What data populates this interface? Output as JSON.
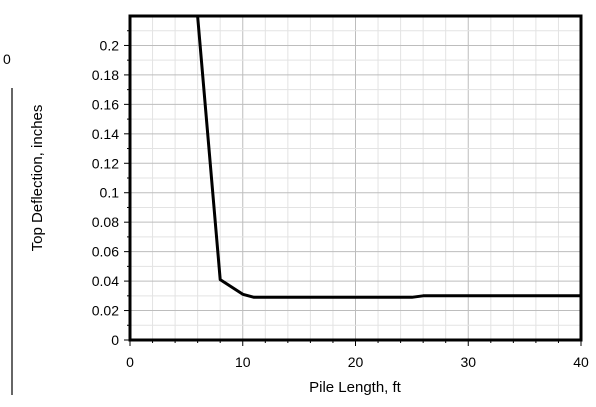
{
  "chart_data": {
    "type": "line",
    "title": "",
    "xlabel": "Pile Length, ft",
    "ylabel": "Top Deflection, inches",
    "xlim": [
      0,
      40
    ],
    "ylim": [
      0,
      0.22
    ],
    "x_ticks": [
      "0",
      "10",
      "20",
      "30",
      "40"
    ],
    "y_ticks": [
      "0",
      "0.02",
      "0.04",
      "0.06",
      "0.08",
      "0.1",
      "0.12",
      "0.14",
      "0.16",
      "0.18",
      "0.2"
    ],
    "grid": true,
    "legend": "none",
    "edge_label": "0",
    "series": [
      {
        "color": "#000000",
        "x": [
          6,
          8,
          10,
          11,
          12,
          15,
          20,
          25,
          26,
          30,
          35,
          40
        ],
        "y": [
          0.22,
          0.041,
          0.031,
          0.029,
          0.029,
          0.029,
          0.029,
          0.029,
          0.03,
          0.03,
          0.03,
          0.03
        ]
      }
    ]
  }
}
